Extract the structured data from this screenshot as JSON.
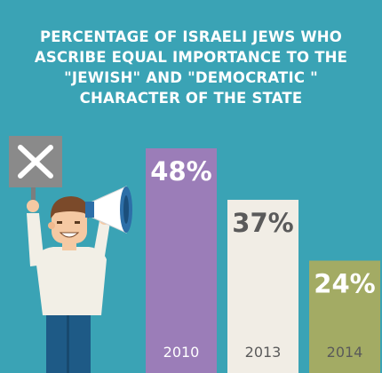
{
  "title_lines": [
    "PERCENTAGE OF ISRAELI JEWS WHO",
    "ASCRIBE EQUAL IMPORTANCE TO THE",
    "\"JEWISH\" AND \"DEMOCRATIC \"",
    "CHARACTER OF THE STATE"
  ],
  "colors": {
    "background": "#3aa3b5",
    "bar_2010": "#9b7db8",
    "bar_2013": "#f1ede5",
    "bar_2014": "#a3ab64",
    "value_light": "#ffffff",
    "value_dark": "#5a5a5a",
    "year_light": "#ffffff",
    "year_dark": "#5a5a5a"
  },
  "illustration": {
    "sign_icon": "x-mark-sign-icon",
    "megaphone_icon": "megaphone-icon",
    "person_icon": "protesting-man-icon"
  },
  "chart_data": {
    "type": "bar",
    "categories": [
      "2010",
      "2013",
      "2014"
    ],
    "values": [
      48,
      37,
      24
    ],
    "value_labels": [
      "48%",
      "37%",
      "24%"
    ],
    "title": "PERCENTAGE OF ISRAELI JEWS WHO ASCRIBE EQUAL IMPORTANCE TO THE \"JEWISH\" AND \"DEMOCRATIC \" CHARACTER OF THE STATE",
    "xlabel": "",
    "ylabel": "",
    "ylim": [
      0,
      48
    ],
    "grid": false,
    "legend": "none"
  }
}
